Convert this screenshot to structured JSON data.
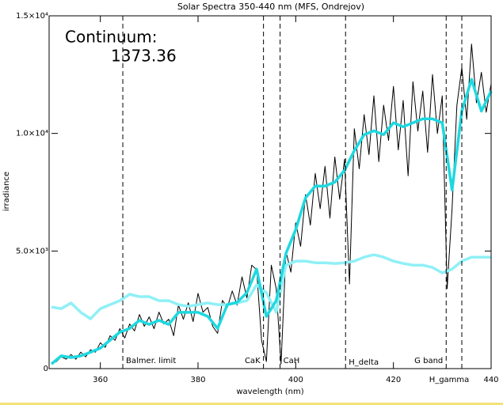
{
  "chart_data": {
    "type": "line",
    "title": "Solar Spectra 350-440 nm (MFS, Ondrejov)",
    "x_label": "wavelength (nm)",
    "y_label": "irradiance",
    "annotations": [
      "Continuum:",
      "1373.36"
    ],
    "xlim": [
      350,
      440
    ],
    "xticks": [
      360,
      380,
      400,
      420,
      440
    ],
    "ylim": [
      0,
      15000
    ],
    "yticks": [
      0,
      {
        "value": 5000,
        "label": "5.0×10³"
      },
      {
        "value": 10000,
        "label": "1.0×10⁴"
      },
      {
        "value": 15000,
        "label": "1.5×10⁴"
      }
    ],
    "markers": [
      {
        "x": 364.6,
        "label": "Balmer. limit"
      },
      {
        "x": 393.4,
        "label": "CaK"
      },
      {
        "x": 396.8,
        "label": "CaH"
      },
      {
        "x": 410.2,
        "label": "H_delta"
      },
      {
        "x": 430.8,
        "label": "G band"
      },
      {
        "x": 434.0,
        "label": "H_gamma"
      }
    ],
    "series": [
      {
        "color": "#000000",
        "x": [
          350,
          351,
          352,
          353,
          354,
          355,
          356,
          357,
          358,
          359,
          360,
          361,
          362,
          363,
          364,
          365,
          366,
          367,
          368,
          369,
          370,
          371,
          372,
          373,
          374,
          375,
          376,
          377,
          378,
          379,
          380,
          381,
          382,
          383,
          384,
          385,
          386,
          387,
          388,
          389,
          390,
          391,
          392,
          393,
          394,
          395,
          396,
          397,
          398,
          399,
          400,
          401,
          402,
          403,
          404,
          405,
          406,
          407,
          408,
          409,
          410,
          411,
          412,
          413,
          414,
          415,
          416,
          417,
          418,
          419,
          420,
          421,
          422,
          423,
          424,
          425,
          426,
          427,
          428,
          429,
          430,
          431,
          432,
          433,
          434,
          435,
          436,
          437,
          438,
          439,
          440
        ],
        "values": [
          200,
          300,
          500,
          400,
          600,
          400,
          700,
          500,
          800,
          700,
          1100,
          900,
          1400,
          1200,
          1700,
          1300,
          1900,
          1600,
          2300,
          1800,
          2200,
          1700,
          2400,
          1900,
          2100,
          1400,
          2700,
          2100,
          2800,
          2000,
          3200,
          2400,
          2600,
          1800,
          1500,
          2900,
          2600,
          3300,
          2700,
          3900,
          3000,
          4400,
          4200,
          1200,
          300,
          4400,
          3400,
          200,
          5000,
          4100,
          6200,
          5200,
          7400,
          6100,
          8300,
          6800,
          8600,
          6400,
          9000,
          7200,
          8900,
          3600,
          10200,
          8500,
          10800,
          9100,
          11600,
          8800,
          11200,
          9700,
          12000,
          9300,
          11400,
          8200,
          12200,
          10100,
          11800,
          9200,
          12500,
          10000,
          11600,
          3400,
          6800,
          11200,
          12800,
          10600,
          13800,
          11300,
          12600,
          10900,
          12100
        ]
      },
      {
        "color": "#8ff0f6",
        "x": [
          350,
          352,
          354,
          356,
          358,
          360,
          362,
          364,
          366,
          368,
          370,
          372,
          374,
          376,
          378,
          380,
          382,
          384,
          386,
          388,
          390,
          392,
          394,
          396,
          398,
          400,
          402,
          404,
          406,
          408,
          410,
          412,
          414,
          416,
          418,
          420,
          422,
          424,
          426,
          428,
          430,
          432,
          434,
          436,
          438,
          440
        ],
        "values": [
          2620,
          2550,
          2790,
          2390,
          2120,
          2550,
          2720,
          2890,
          3160,
          3060,
          3060,
          2890,
          2890,
          2720,
          2650,
          2720,
          2790,
          2720,
          2720,
          2790,
          2890,
          3560,
          3230,
          2390,
          4400,
          4570,
          4570,
          4500,
          4500,
          4470,
          4500,
          4570,
          4740,
          4840,
          4740,
          4570,
          4470,
          4400,
          4400,
          4300,
          4070,
          4230,
          4570,
          4740,
          4740,
          4740
        ]
      },
      {
        "color": "#1ed8e0",
        "x": [
          350,
          352,
          354,
          356,
          358,
          360,
          362,
          364,
          366,
          368,
          370,
          372,
          374,
          376,
          378,
          380,
          382,
          384,
          386,
          388,
          390,
          392,
          394,
          396,
          398,
          400,
          402,
          404,
          406,
          408,
          410,
          412,
          414,
          416,
          418,
          420,
          422,
          424,
          426,
          428,
          430,
          432,
          434,
          436,
          438,
          440
        ],
        "values": [
          200,
          540,
          470,
          540,
          700,
          870,
          1210,
          1550,
          1710,
          2050,
          1880,
          2050,
          1880,
          2390,
          2390,
          2390,
          2220,
          1710,
          2720,
          2820,
          3230,
          4230,
          2220,
          2890,
          4900,
          5910,
          7260,
          7760,
          7760,
          7930,
          8430,
          9270,
          9950,
          10110,
          9950,
          10450,
          10280,
          10450,
          10620,
          10620,
          10450,
          7590,
          10950,
          12300,
          10950,
          11800
        ]
      }
    ]
  }
}
